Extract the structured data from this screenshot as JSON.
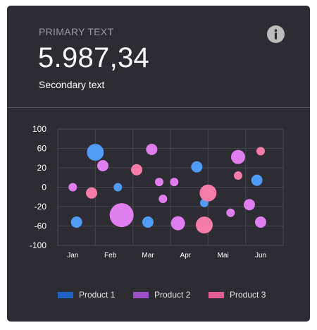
{
  "header": {
    "primary_label": "PRIMARY TEXT",
    "value": "5.987,34",
    "secondary": "Secondary text",
    "info_icon": "info-icon"
  },
  "colors": {
    "card_bg": "#2c2c32",
    "product1": "#4f9bf7",
    "product2": "#e07ef0",
    "product3": "#f57ca8",
    "legend_product1": "#1f63c6",
    "legend_product2": "#9b4fc6",
    "legend_product3": "#e45d92"
  },
  "legend": [
    {
      "label": "Product 1",
      "color": "#1f63c6"
    },
    {
      "label": "Product 2",
      "color": "#9b4fc6"
    },
    {
      "label": "Product 3",
      "color": "#e45d92"
    }
  ],
  "chart_data": {
    "type": "scatter",
    "variant": "bubble",
    "x_ticks": [
      "Jan",
      "Feb",
      "Mar",
      "Apr",
      "Mai",
      "Jun"
    ],
    "y_ticks": [
      100,
      60,
      20,
      0,
      -20,
      -60,
      -100
    ],
    "ylim": [
      -100,
      100
    ],
    "xlim": [
      0,
      6
    ],
    "grid": true,
    "legend_position": "bottom",
    "series": [
      {
        "name": "Product 1",
        "color": "#4f9bf7",
        "points": [
          {
            "x": 1.0,
            "y": 60,
            "r": 12
          },
          {
            "x": 1.6,
            "y": 0,
            "r": 6
          },
          {
            "x": 0.5,
            "y": -60,
            "r": 8
          },
          {
            "x": 2.4,
            "y": -60,
            "r": 8
          },
          {
            "x": 3.7,
            "y": 35,
            "r": 8
          },
          {
            "x": 3.9,
            "y": -27,
            "r": 6
          },
          {
            "x": 5.3,
            "y": 12,
            "r": 8
          }
        ]
      },
      {
        "name": "Product 2",
        "color": "#e07ef0",
        "points": [
          {
            "x": 0.4,
            "y": 0,
            "r": 6
          },
          {
            "x": 1.2,
            "y": 37,
            "r": 8
          },
          {
            "x": 2.5,
            "y": 65,
            "r": 8
          },
          {
            "x": 2.7,
            "y": 9,
            "r": 6
          },
          {
            "x": 2.8,
            "y": -20,
            "r": 6
          },
          {
            "x": 1.7,
            "y": -48,
            "r": 17
          },
          {
            "x": 3.1,
            "y": 9,
            "r": 6
          },
          {
            "x": 3.2,
            "y": -62,
            "r": 10
          },
          {
            "x": 4.6,
            "y": -44,
            "r": 6
          },
          {
            "x": 4.8,
            "y": 52,
            "r": 10
          },
          {
            "x": 5.1,
            "y": -30,
            "r": 8
          },
          {
            "x": 5.4,
            "y": -60,
            "r": 8
          }
        ]
      },
      {
        "name": "Product 3",
        "color": "#f57ca8",
        "points": [
          {
            "x": 0.9,
            "y": -10,
            "r": 8
          },
          {
            "x": 2.1,
            "y": 30,
            "r": 8
          },
          {
            "x": 4.0,
            "y": -10,
            "r": 12
          },
          {
            "x": 3.9,
            "y": -65,
            "r": 12
          },
          {
            "x": 4.8,
            "y": 20,
            "r": 6
          },
          {
            "x": 5.4,
            "y": 62,
            "r": 6
          }
        ]
      }
    ]
  }
}
